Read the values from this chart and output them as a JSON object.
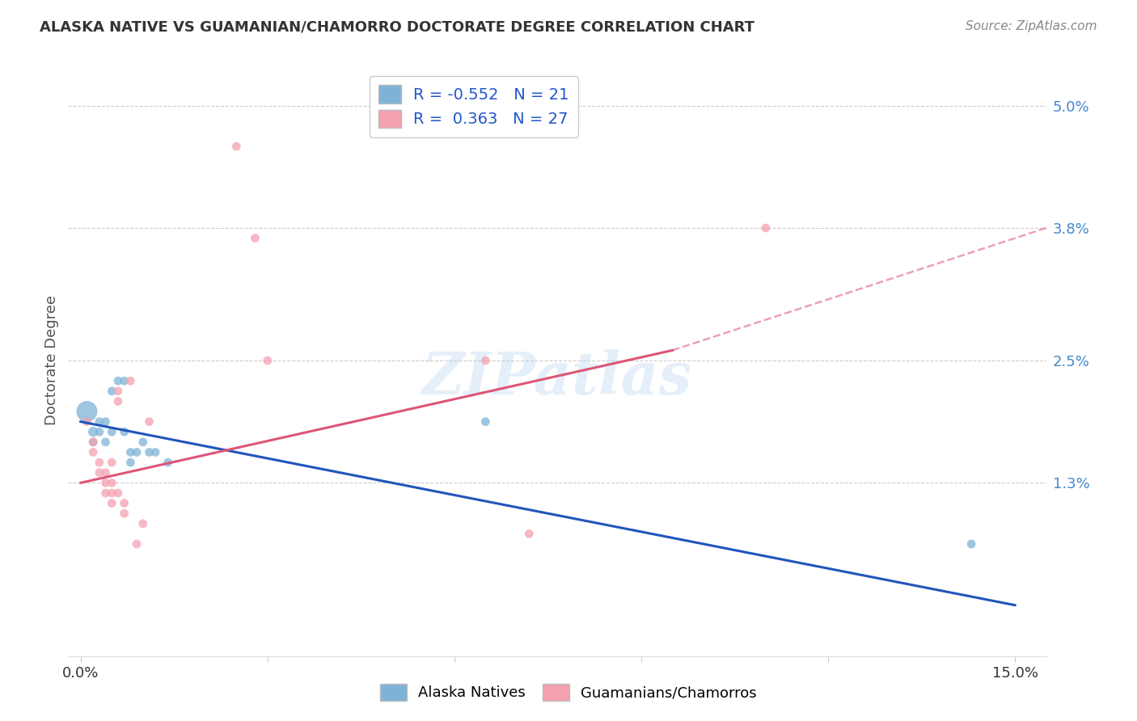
{
  "title": "ALASKA NATIVE VS GUAMANIAN/CHAMORRO DOCTORATE DEGREE CORRELATION CHART",
  "source": "Source: ZipAtlas.com",
  "ylabel": "Doctorate Degree",
  "ytick_values": [
    0.013,
    0.025,
    0.038,
    0.05
  ],
  "xtick_values": [
    0.0,
    0.03,
    0.06,
    0.09,
    0.12,
    0.15
  ],
  "xtick_labels": [
    "0.0%",
    "",
    "",
    "",
    "",
    "15.0%"
  ],
  "xlim": [
    -0.002,
    0.155
  ],
  "ylim": [
    -0.004,
    0.054
  ],
  "legend_r_blue": "-0.552",
  "legend_n_blue": "21",
  "legend_r_pink": "0.363",
  "legend_n_pink": "27",
  "watermark": "ZIPatlas",
  "blue_color": "#7EB3D8",
  "pink_color": "#F4A0B0",
  "blue_line_color": "#2255BB",
  "pink_line_color": "#DD5577",
  "blue_line": [
    [
      0.0,
      0.019
    ],
    [
      0.15,
      0.001
    ]
  ],
  "pink_line_solid": [
    [
      0.0,
      0.013
    ],
    [
      0.095,
      0.026
    ]
  ],
  "pink_line_dashed": [
    [
      0.095,
      0.026
    ],
    [
      0.155,
      0.038
    ]
  ],
  "alaska_points": [
    [
      0.001,
      0.02,
      350
    ],
    [
      0.002,
      0.018,
      80
    ],
    [
      0.002,
      0.017,
      60
    ],
    [
      0.003,
      0.019,
      60
    ],
    [
      0.003,
      0.018,
      60
    ],
    [
      0.004,
      0.019,
      60
    ],
    [
      0.004,
      0.017,
      60
    ],
    [
      0.005,
      0.018,
      60
    ],
    [
      0.005,
      0.022,
      60
    ],
    [
      0.006,
      0.023,
      60
    ],
    [
      0.007,
      0.023,
      60
    ],
    [
      0.007,
      0.018,
      60
    ],
    [
      0.008,
      0.016,
      60
    ],
    [
      0.008,
      0.015,
      60
    ],
    [
      0.009,
      0.016,
      60
    ],
    [
      0.01,
      0.017,
      60
    ],
    [
      0.011,
      0.016,
      60
    ],
    [
      0.012,
      0.016,
      60
    ],
    [
      0.014,
      0.015,
      60
    ],
    [
      0.065,
      0.019,
      60
    ],
    [
      0.143,
      0.007,
      60
    ]
  ],
  "guamanian_points": [
    [
      0.001,
      0.019,
      60
    ],
    [
      0.002,
      0.017,
      60
    ],
    [
      0.002,
      0.016,
      60
    ],
    [
      0.003,
      0.015,
      60
    ],
    [
      0.003,
      0.014,
      60
    ],
    [
      0.004,
      0.014,
      60
    ],
    [
      0.004,
      0.013,
      60
    ],
    [
      0.004,
      0.012,
      60
    ],
    [
      0.005,
      0.015,
      60
    ],
    [
      0.005,
      0.013,
      60
    ],
    [
      0.005,
      0.012,
      60
    ],
    [
      0.005,
      0.011,
      60
    ],
    [
      0.006,
      0.022,
      60
    ],
    [
      0.006,
      0.021,
      60
    ],
    [
      0.006,
      0.012,
      60
    ],
    [
      0.007,
      0.011,
      60
    ],
    [
      0.007,
      0.01,
      60
    ],
    [
      0.008,
      0.023,
      60
    ],
    [
      0.009,
      0.007,
      60
    ],
    [
      0.01,
      0.009,
      60
    ],
    [
      0.011,
      0.019,
      60
    ],
    [
      0.025,
      0.046,
      60
    ],
    [
      0.028,
      0.037,
      60
    ],
    [
      0.03,
      0.025,
      60
    ],
    [
      0.065,
      0.025,
      60
    ],
    [
      0.072,
      0.008,
      60
    ],
    [
      0.11,
      0.038,
      60
    ]
  ]
}
